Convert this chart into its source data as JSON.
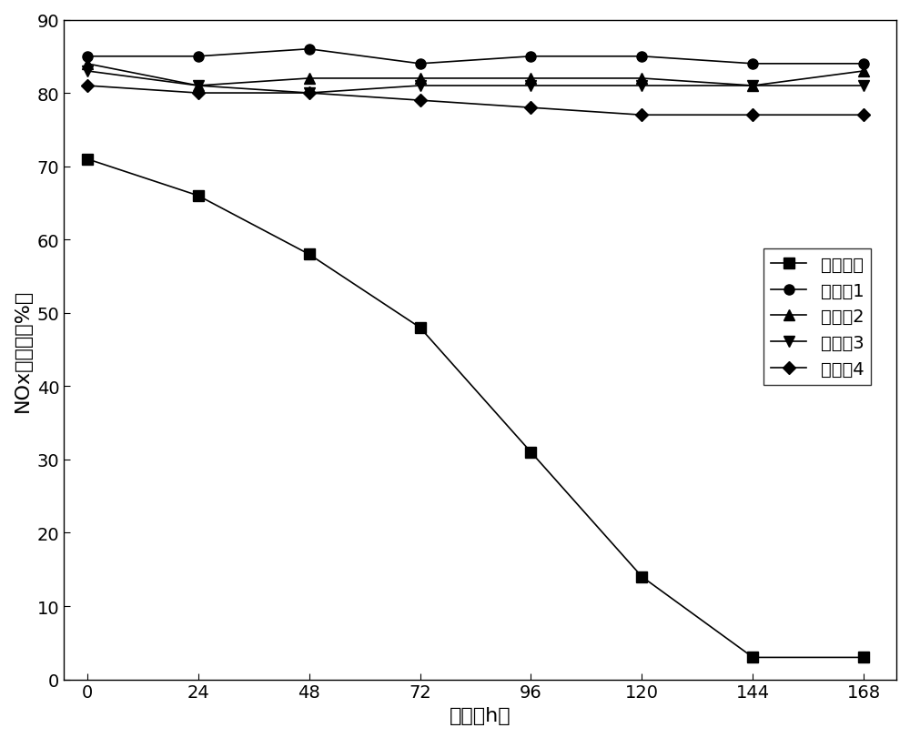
{
  "x": [
    0,
    24,
    48,
    72,
    96,
    120,
    144,
    168
  ],
  "series": [
    {
      "label": "对比样品",
      "values": [
        71,
        66,
        58,
        48,
        31,
        14,
        3,
        3
      ],
      "marker": "s",
      "color": "black",
      "linestyle": "-"
    },
    {
      "label": "实施例1",
      "values": [
        85,
        85,
        86,
        84,
        85,
        85,
        84,
        84
      ],
      "marker": "o",
      "color": "black",
      "linestyle": "-"
    },
    {
      "label": "实施例2",
      "values": [
        84,
        81,
        82,
        82,
        82,
        82,
        81,
        83
      ],
      "marker": "^",
      "color": "black",
      "linestyle": "-"
    },
    {
      "label": "实施例3",
      "values": [
        83,
        81,
        80,
        81,
        81,
        81,
        81,
        81
      ],
      "marker": "v",
      "color": "black",
      "linestyle": "-"
    },
    {
      "label": "实施例4",
      "values": [
        81,
        80,
        80,
        79,
        78,
        77,
        77,
        77
      ],
      "marker": "D",
      "color": "black",
      "linestyle": "-"
    }
  ],
  "xlabel": "时间（h）",
  "ylabel": "NOx脱除率（%）",
  "xlim": [
    -5,
    175
  ],
  "ylim": [
    0,
    90
  ],
  "xticks": [
    0,
    24,
    48,
    72,
    96,
    120,
    144,
    168
  ],
  "yticks": [
    0,
    10,
    20,
    30,
    40,
    50,
    60,
    70,
    80,
    90
  ],
  "legend_loc": "center right",
  "figsize": [
    10.0,
    8.12
  ],
  "dpi": 100
}
